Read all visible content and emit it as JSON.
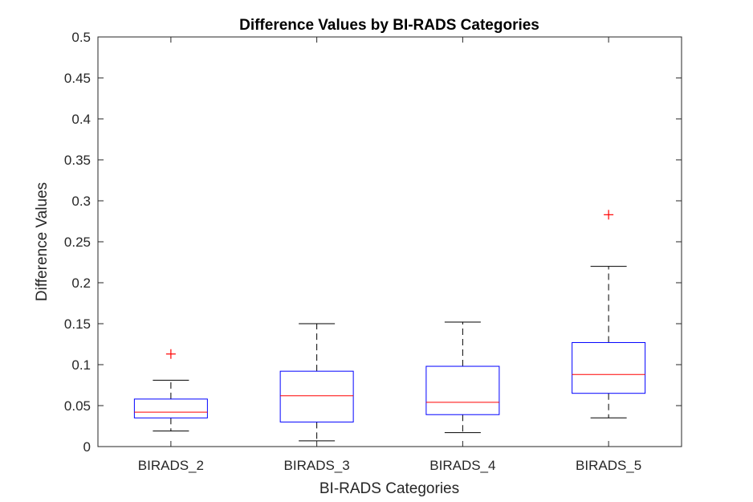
{
  "chart_data": {
    "type": "box",
    "title": "Difference Values by BI-RADS Categories",
    "xlabel": "BI-RADS Categories",
    "ylabel": "Difference Values",
    "ylim": [
      0,
      0.5
    ],
    "yticks": [
      "0",
      "0.05",
      "0.1",
      "0.15",
      "0.2",
      "0.25",
      "0.3",
      "0.35",
      "0.4",
      "0.45",
      "0.5"
    ],
    "categories": [
      "BIRADS_2",
      "BIRADS_3",
      "BIRADS_4",
      "BIRADS_5"
    ],
    "boxes": [
      {
        "category": "BIRADS_2",
        "whisker_low": 0.019,
        "q1": 0.035,
        "median": 0.042,
        "q3": 0.058,
        "whisker_high": 0.081,
        "outliers": [
          0.113
        ]
      },
      {
        "category": "BIRADS_3",
        "whisker_low": 0.007,
        "q1": 0.03,
        "median": 0.062,
        "q3": 0.092,
        "whisker_high": 0.15,
        "outliers": []
      },
      {
        "category": "BIRADS_4",
        "whisker_low": 0.017,
        "q1": 0.039,
        "median": 0.054,
        "q3": 0.098,
        "whisker_high": 0.152,
        "outliers": []
      },
      {
        "category": "BIRADS_5",
        "whisker_low": 0.035,
        "q1": 0.065,
        "median": 0.088,
        "q3": 0.127,
        "whisker_high": 0.22,
        "outliers": [
          0.283
        ]
      }
    ],
    "colors": {
      "box": "#0000ff",
      "median": "#ff0000",
      "whisker": "#000000",
      "outlier": "#ff0000"
    },
    "grid": false,
    "legend": "none"
  }
}
